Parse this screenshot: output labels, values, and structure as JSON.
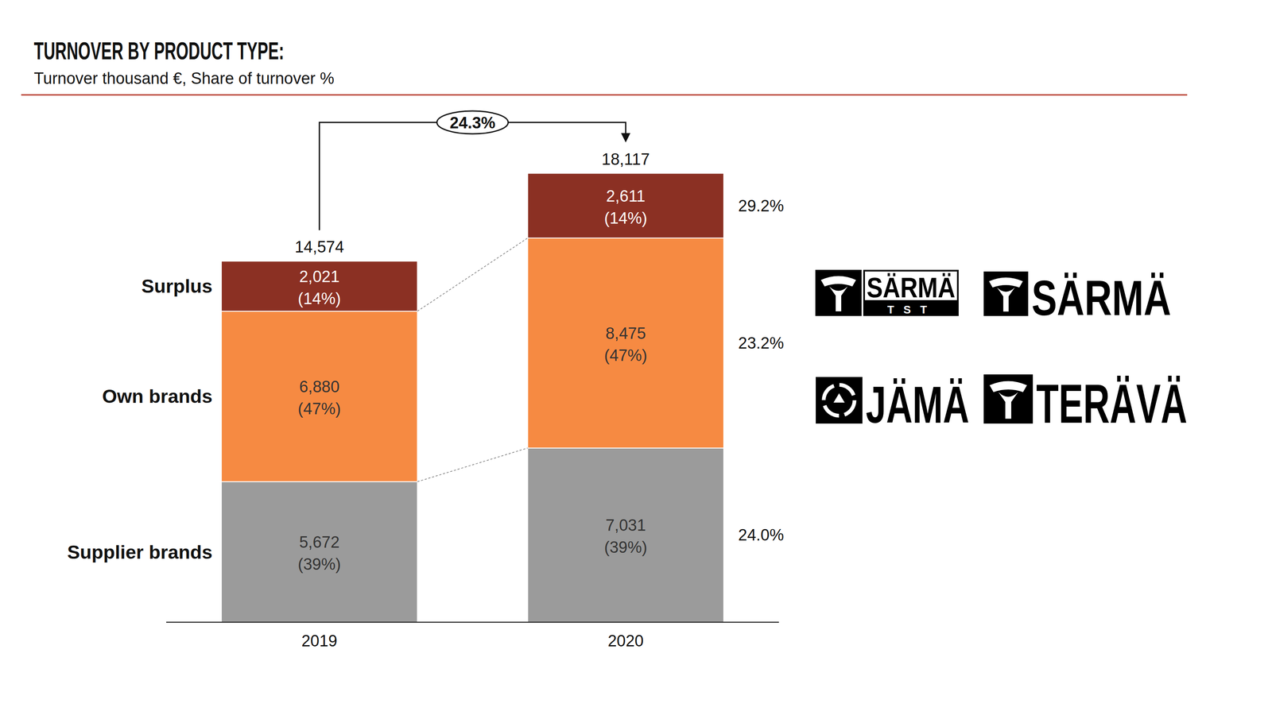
{
  "chart_data": {
    "type": "bar",
    "title": "TURNOVER BY PRODUCT TYPE:",
    "subtitle": "Turnover thousand €, Share of turnover %",
    "categories": [
      "2019",
      "2020"
    ],
    "stacked": true,
    "data_labels": true,
    "tick_labels": "x",
    "ylim": [
      0,
      20000
    ],
    "series": [
      {
        "name": "Supplier brands",
        "color": "#9b9b9b",
        "values": [
          5672,
          7031
        ],
        "value_labels": [
          "5,672",
          "7,031"
        ],
        "share_labels": [
          "(39%)",
          "(39%)"
        ],
        "growth_label": "24.0%"
      },
      {
        "name": "Own brands",
        "color": "#f68a42",
        "values": [
          6880,
          8475
        ],
        "value_labels": [
          "6,880",
          "8,475"
        ],
        "share_labels": [
          "(47%)",
          "(47%)"
        ],
        "growth_label": "23.2%"
      },
      {
        "name": "Surplus",
        "color": "#8b3023",
        "values": [
          2021,
          2611
        ],
        "value_labels": [
          "2,021",
          "2,611"
        ],
        "share_labels": [
          "(14%)",
          "(14%)"
        ],
        "growth_label": "29.2%"
      }
    ],
    "totals": [
      14574,
      18117
    ],
    "total_labels": [
      "14,574",
      "18,117"
    ],
    "growth_label": "24.3%",
    "logos": [
      {
        "name": "SÄRMÄ",
        "sub": "TST"
      },
      {
        "name": "SÄRMÄ"
      },
      {
        "name": "JÄMÄ"
      },
      {
        "name": "TERÄVÄ"
      }
    ]
  }
}
